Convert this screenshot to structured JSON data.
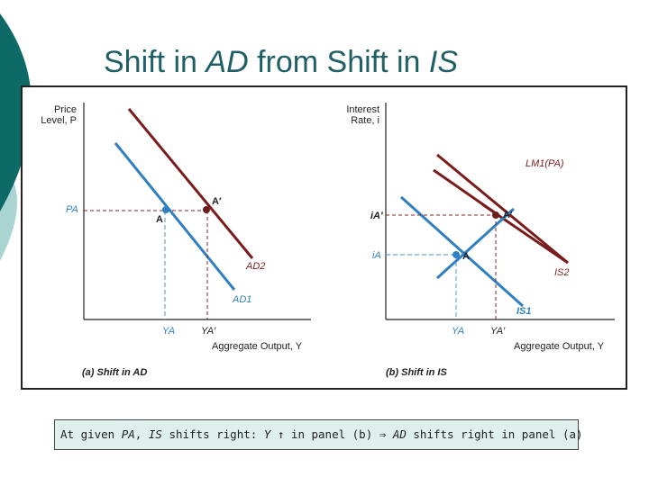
{
  "slide": {
    "title_parts": [
      "Shift in ",
      "AD",
      " from Shift in ",
      "IS"
    ],
    "colors": {
      "title": "#1f5f66",
      "deco_dark": "#0e6a67",
      "deco_light": "#a9d4d2",
      "curve_dark": "#7b1c1c",
      "curve_blue": "#2f7fc1",
      "dashed_red": "#8b2020",
      "dashed_blue": "#6aa8d8",
      "caption_bg": "#dff0ec"
    }
  },
  "panel_a": {
    "y_axis_label_line1": "Price",
    "y_axis_label_line2": "Level, P",
    "x_axis_label": "Aggregate Output, Y",
    "caption": "(a) Shift in AD",
    "curve_new": "AD2",
    "curve_old": "AD1",
    "point_old": "A",
    "point_new": "A′",
    "price_tick": "PA",
    "output_tick_old": "YA",
    "output_tick_new": "YA′"
  },
  "panel_b": {
    "y_axis_label_line1": "Interest",
    "y_axis_label_line2": "Rate, i",
    "x_axis_label": "Aggregate Output, Y",
    "caption": "(b) Shift in IS",
    "curve_lm": "LM1(PA)",
    "curve_is_new": "IS2",
    "curve_is_old": "IS1",
    "point_old": "A",
    "point_new": "A′",
    "rate_tick_new": "iA′",
    "rate_tick_old": "iA",
    "output_tick_old": "YA",
    "output_tick_new": "YA′"
  },
  "caption_bar": {
    "parts": [
      "At given ",
      "PA",
      ", ",
      "IS",
      " shifts right: ",
      "Y",
      " ↑ in panel (b) ⇒ ",
      "AD",
      " shifts right in panel (a)"
    ]
  }
}
